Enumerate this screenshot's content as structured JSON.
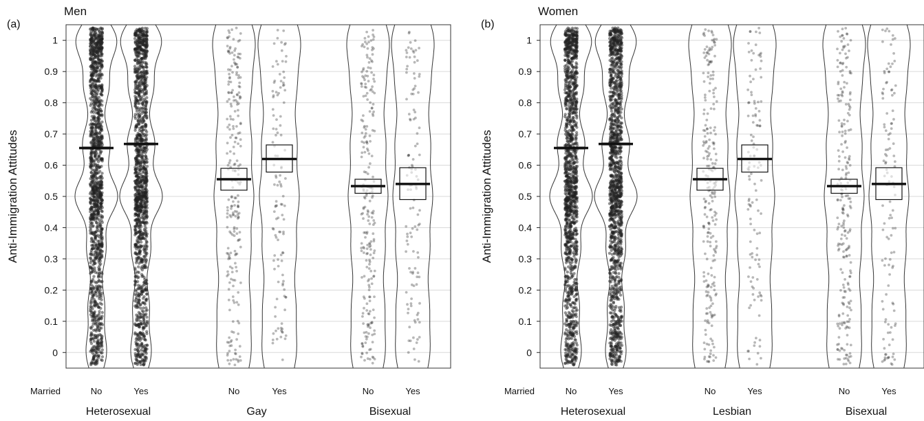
{
  "figure": {
    "ylabel": "Anti-Immigration Attitudes",
    "married_label": "Married",
    "married_values": [
      "No",
      "Yes"
    ],
    "yticks": [
      "0",
      "0.1",
      "0.2",
      "0.3",
      "0.4",
      "0.5",
      "0.6",
      "0.7",
      "0.8",
      "0.9",
      "1"
    ]
  },
  "chart_data": [
    {
      "type": "violin",
      "panel_tag": "(a)",
      "title": "Men",
      "ylabel": "Anti-Immigration Attitudes",
      "ylim": [
        -0.05,
        1.05
      ],
      "grid": true,
      "categories": [
        "Heterosexual",
        "Gay",
        "Bisexual"
      ],
      "series": [
        {
          "group": "Heterosexual",
          "married": "No",
          "mean": 0.655,
          "ci": [
            0.652,
            0.658
          ],
          "n": "large"
        },
        {
          "group": "Heterosexual",
          "married": "Yes",
          "mean": 0.668,
          "ci": [
            0.665,
            0.671
          ],
          "n": "large"
        },
        {
          "group": "Gay",
          "married": "No",
          "mean": 0.555,
          "ci": [
            0.52,
            0.59
          ],
          "n": "medium"
        },
        {
          "group": "Gay",
          "married": "Yes",
          "mean": 0.62,
          "ci": [
            0.578,
            0.665
          ],
          "n": "small"
        },
        {
          "group": "Bisexual",
          "married": "No",
          "mean": 0.533,
          "ci": [
            0.51,
            0.555
          ],
          "n": "medium"
        },
        {
          "group": "Bisexual",
          "married": "Yes",
          "mean": 0.54,
          "ci": [
            0.49,
            0.592
          ],
          "n": "small"
        }
      ]
    },
    {
      "type": "violin",
      "panel_tag": "(b)",
      "title": "Women",
      "ylabel": "Anti-Immigration Attitudes",
      "ylim": [
        -0.05,
        1.05
      ],
      "grid": true,
      "categories": [
        "Heterosexual",
        "Lesbian",
        "Bisexual"
      ],
      "series": [
        {
          "group": "Heterosexual",
          "married": "No",
          "mean": 0.655,
          "ci": [
            0.652,
            0.658
          ],
          "n": "large"
        },
        {
          "group": "Heterosexual",
          "married": "Yes",
          "mean": 0.668,
          "ci": [
            0.665,
            0.671
          ],
          "n": "large"
        },
        {
          "group": "Lesbian",
          "married": "No",
          "mean": 0.555,
          "ci": [
            0.52,
            0.59
          ],
          "n": "medium"
        },
        {
          "group": "Lesbian",
          "married": "Yes",
          "mean": 0.62,
          "ci": [
            0.578,
            0.665
          ],
          "n": "small"
        },
        {
          "group": "Bisexual",
          "married": "No",
          "mean": 0.533,
          "ci": [
            0.51,
            0.555
          ],
          "n": "medium"
        },
        {
          "group": "Bisexual",
          "married": "Yes",
          "mean": 0.54,
          "ci": [
            0.49,
            0.592
          ],
          "n": "small"
        }
      ]
    }
  ]
}
